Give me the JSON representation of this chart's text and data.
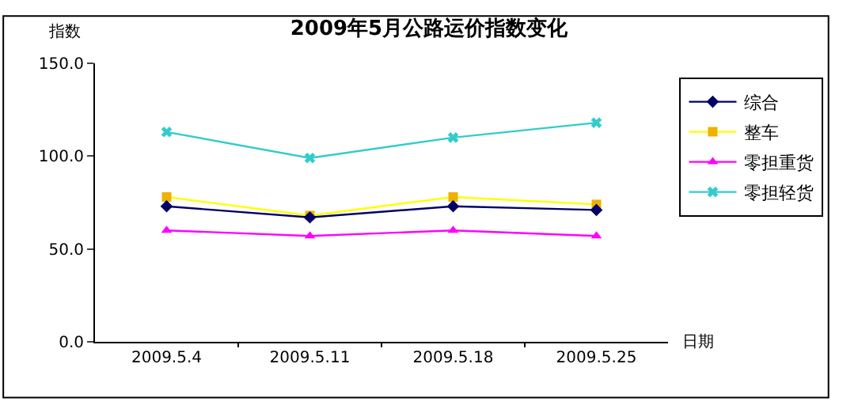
{
  "chart_data": {
    "type": "line",
    "title": "2009年5月公路运价指数变化",
    "ylabel": "指数",
    "xlabel": "日期",
    "categories": [
      "2009.5.4",
      "2009.5.11",
      "2009.5.18",
      "2009.5.25"
    ],
    "series": [
      {
        "name": "综合",
        "color": "#000066",
        "marker": "diamond",
        "values": [
          73,
          67,
          73,
          71
        ]
      },
      {
        "name": "整车",
        "color": "#ffff00",
        "marker": "square",
        "values": [
          78,
          68,
          78,
          74
        ]
      },
      {
        "name": "零担重货",
        "color": "#ff00ff",
        "marker": "triangle",
        "values": [
          60,
          57,
          60,
          57
        ]
      },
      {
        "name": "零担轻货",
        "color": "#33cccc",
        "marker": "cross",
        "values": [
          113,
          99,
          110,
          118
        ]
      }
    ],
    "ylim": [
      0,
      150
    ],
    "yticks": [
      {
        "value": 0,
        "label": "0.0"
      },
      {
        "value": 50,
        "label": "50.0"
      },
      {
        "value": 100,
        "label": "100.0"
      },
      {
        "value": 150,
        "label": "150.0"
      }
    ],
    "legend": "right"
  }
}
